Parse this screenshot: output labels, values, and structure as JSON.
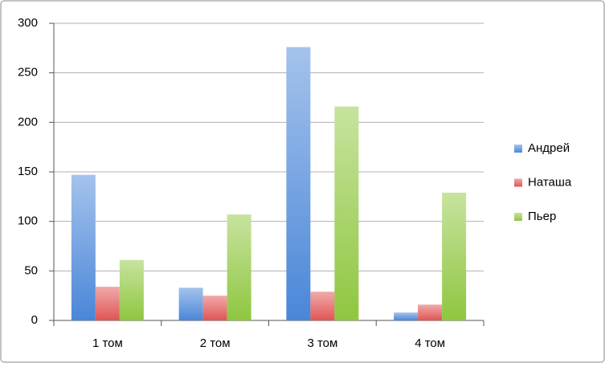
{
  "chart_data": {
    "type": "bar",
    "categories": [
      "1 том",
      "2 том",
      "3 том",
      "4 том"
    ],
    "series": [
      {
        "name": "Андрей",
        "color": "#4a86d8",
        "values": [
          147,
          33,
          276,
          8
        ]
      },
      {
        "name": "Наташа",
        "color": "#e05555",
        "values": [
          34,
          25,
          29,
          16
        ]
      },
      {
        "name": "Пьер",
        "color": "#8fc63f",
        "values": [
          61,
          107,
          216,
          129
        ]
      }
    ],
    "ylim": [
      0,
      300
    ],
    "yticks": [
      0,
      50,
      100,
      150,
      200,
      250,
      300
    ],
    "grid": true,
    "legend": "right"
  }
}
